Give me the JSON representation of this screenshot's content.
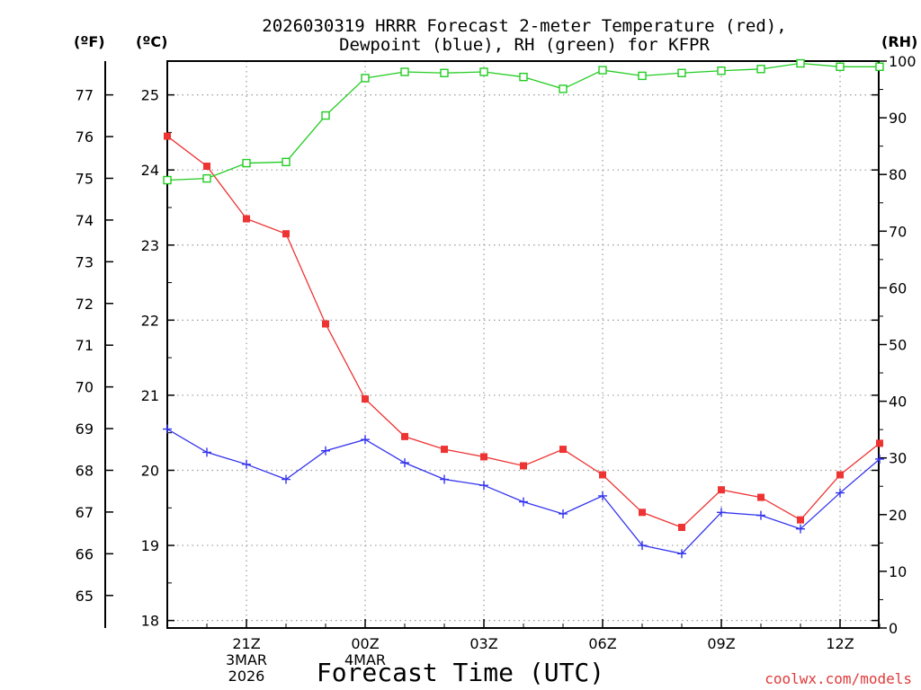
{
  "chart_data": {
    "type": "line",
    "title_line1": "2026030319 HRRR Forecast 2-meter Temperature (red),",
    "title_line2": "Dewpoint (blue), RH (green) for KFPR",
    "xlabel": "Forecast Time (UTC)",
    "left_f_label": "(ºF)",
    "left_c_label": "(ºC)",
    "right_label": "(RH)",
    "watermark": "coolwx.com/models",
    "x_hours": [
      19,
      20,
      21,
      22,
      23,
      24,
      25,
      26,
      27,
      28,
      29,
      30,
      31,
      32,
      33,
      34,
      35,
      36,
      37
    ],
    "x_ticks": [
      {
        "hour": 21,
        "lines": [
          "21Z",
          "3MAR",
          "2026"
        ]
      },
      {
        "hour": 24,
        "lines": [
          "00Z",
          "4MAR"
        ]
      },
      {
        "hour": 27,
        "lines": [
          "03Z"
        ]
      },
      {
        "hour": 30,
        "lines": [
          "06Z"
        ]
      },
      {
        "hour": 33,
        "lines": [
          "09Z"
        ]
      },
      {
        "hour": 36,
        "lines": [
          "12Z"
        ]
      }
    ],
    "x_grid_hours": [
      21,
      24,
      27,
      30,
      33,
      36
    ],
    "ylim_c": [
      17.9,
      25.45
    ],
    "c_ticks": [
      18,
      19,
      20,
      21,
      22,
      23,
      24,
      25
    ],
    "f_ticks": [
      65,
      66,
      67,
      68,
      69,
      70,
      71,
      72,
      73,
      74,
      75,
      76,
      77
    ],
    "rh_ticks": [
      0,
      10,
      20,
      30,
      40,
      50,
      60,
      70,
      80,
      90,
      100
    ],
    "ylim_rh": [
      0,
      100
    ],
    "series": [
      {
        "name": "Temperature",
        "color": "#ee3333",
        "marker": "square-filled",
        "axis": "celsius",
        "values": [
          24.45,
          24.05,
          23.35,
          23.15,
          21.95,
          20.95,
          20.45,
          20.28,
          20.18,
          20.06,
          20.28,
          19.94,
          19.44,
          19.24,
          19.74,
          19.64,
          19.34,
          19.94,
          20.36
        ]
      },
      {
        "name": "Dewpoint",
        "color": "#3333ee",
        "marker": "plus",
        "axis": "celsius",
        "values": [
          20.55,
          20.24,
          20.08,
          19.88,
          20.26,
          20.41,
          20.1,
          19.88,
          19.8,
          19.58,
          19.42,
          19.66,
          19.0,
          18.89,
          19.44,
          19.4,
          19.22,
          19.7,
          20.15
        ]
      },
      {
        "name": "RH",
        "color": "#22cc22",
        "marker": "square-open",
        "axis": "rh",
        "values": [
          79.0,
          79.3,
          82.0,
          82.2,
          90.4,
          97.0,
          98.1,
          97.9,
          98.1,
          97.2,
          95.1,
          98.4,
          97.4,
          97.9,
          98.3,
          98.6,
          99.6,
          99.0,
          99.0
        ]
      }
    ]
  }
}
